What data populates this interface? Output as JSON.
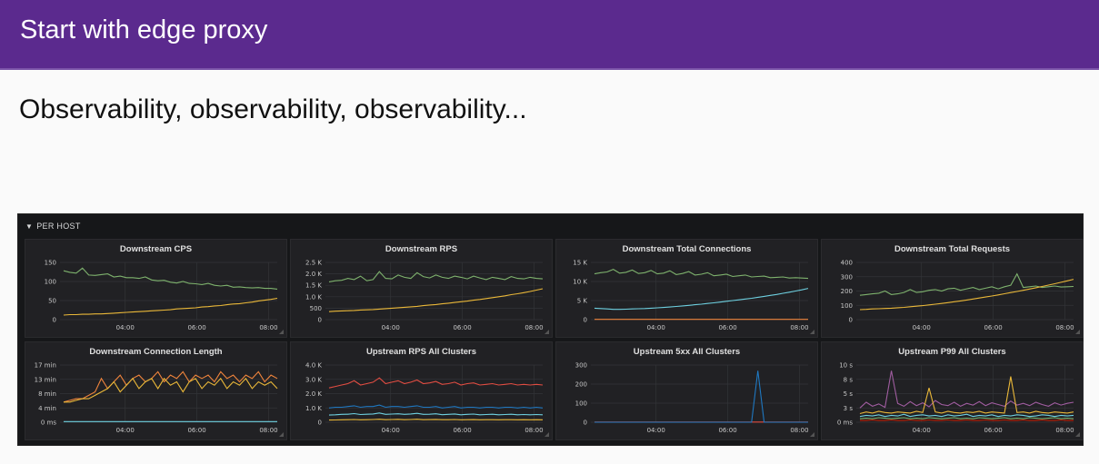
{
  "slide": {
    "title": "Start with edge proxy",
    "subtitle": "Observability, observability, observability..."
  },
  "dashboard": {
    "row_title": "PER HOST",
    "x_ticks": [
      "04:00",
      "06:00",
      "08:00"
    ],
    "panels": [
      {
        "title": "Downstream CPS",
        "y_ticks": [
          "150",
          "100",
          "50",
          "0"
        ],
        "series": [
          {
            "color": "#7eb26d",
            "values": [
              128,
              124,
              122,
              135,
              117,
              116,
              118,
              120,
              112,
              114,
              110,
              110,
              108,
              112,
              104,
              102,
              103,
              98,
              96,
              100,
              95,
              94,
              92,
              95,
              90,
              88,
              90,
              85,
              86,
              84,
              83,
              84,
              82,
              82,
              80
            ]
          },
          {
            "color": "#eab839",
            "values": [
              12,
              13,
              13,
              14,
              14,
              15,
              15,
              16,
              17,
              18,
              19,
              20,
              21,
              22,
              23,
              24,
              25,
              26,
              28,
              29,
              30,
              31,
              33,
              34,
              36,
              37,
              39,
              41,
              42,
              44,
              46,
              49,
              51,
              53,
              56
            ]
          }
        ],
        "ymax": 150
      },
      {
        "title": "Downstream RPS",
        "y_ticks": [
          "2.5 K",
          "2.0 K",
          "1.5 K",
          "1.0 K",
          "500",
          "0"
        ],
        "series": [
          {
            "color": "#7eb26d",
            "values": [
              1650,
              1700,
              1720,
              1800,
              1750,
              1900,
              1700,
              1750,
              2100,
              1800,
              1780,
              1950,
              1850,
              1800,
              2050,
              1880,
              1820,
              1950,
              1850,
              1800,
              1900,
              1850,
              1780,
              1900,
              1820,
              1750,
              1850,
              1800,
              1750,
              1880,
              1800,
              1780,
              1850,
              1800,
              1780
            ]
          },
          {
            "color": "#eab839",
            "values": [
              350,
              370,
              380,
              390,
              400,
              420,
              430,
              440,
              460,
              480,
              500,
              520,
              540,
              560,
              580,
              610,
              640,
              660,
              690,
              720,
              750,
              780,
              810,
              850,
              880,
              920,
              960,
              1000,
              1040,
              1090,
              1130,
              1180,
              1230,
              1290,
              1350
            ]
          }
        ],
        "ymax": 2500
      },
      {
        "title": "Downstream Total Connections",
        "y_ticks": [
          "15 K",
          "10 K",
          "5 K",
          "0"
        ],
        "series": [
          {
            "color": "#7eb26d",
            "values": [
              12000,
              12300,
              12500,
              13200,
              12200,
              12400,
              13000,
              12100,
              12300,
              12900,
              12000,
              12200,
              12800,
              11800,
              12100,
              12600,
              11700,
              11900,
              12300,
              11500,
              11700,
              11900,
              11300,
              11500,
              11700,
              11200,
              11300,
              11400,
              11000,
              11100,
              11200,
              10900,
              11000,
              10900,
              10800
            ]
          },
          {
            "color": "#6ed0e0",
            "values": [
              3000,
              2900,
              2800,
              2700,
              2700,
              2750,
              2800,
              2850,
              2900,
              3000,
              3100,
              3200,
              3300,
              3450,
              3600,
              3750,
              3900,
              4050,
              4250,
              4400,
              4600,
              4800,
              5000,
              5200,
              5400,
              5600,
              5850,
              6100,
              6350,
              6600,
              6900,
              7200,
              7500,
              7800,
              8200
            ]
          },
          {
            "color": "#ef843c",
            "values": [
              80,
              80,
              80,
              80,
              80,
              80,
              80,
              80,
              80,
              80,
              80,
              80,
              80,
              80,
              80,
              80,
              80,
              80,
              80,
              80,
              80,
              80,
              80,
              80,
              80,
              80,
              80,
              80,
              80,
              80,
              80,
              80,
              80,
              80,
              80
            ]
          }
        ],
        "ymax": 15000
      },
      {
        "title": "Downstream Total Requests",
        "y_ticks": [
          "400",
          "300",
          "200",
          "100",
          "0"
        ],
        "series": [
          {
            "color": "#7eb26d",
            "values": [
              170,
              175,
              180,
              185,
              200,
              175,
              180,
              190,
              210,
              190,
              195,
              205,
              210,
              200,
              215,
              220,
              205,
              215,
              225,
              210,
              220,
              230,
              215,
              230,
              240,
              320,
              225,
              230,
              235,
              225,
              230,
              235,
              228,
              230,
              232
            ]
          },
          {
            "color": "#eab839",
            "values": [
              70,
              72,
              75,
              76,
              78,
              80,
              83,
              86,
              90,
              94,
              98,
              103,
              108,
              113,
              119,
              125,
              131,
              137,
              144,
              151,
              158,
              165,
              173,
              181,
              189,
              197,
              205,
              214,
              223,
              232,
              241,
              251,
              261,
              271,
              282
            ]
          }
        ],
        "ymax": 400
      },
      {
        "title": "Downstream Connection Length",
        "y_ticks": [
          "17 min",
          "13 min",
          "8 min",
          "4 min",
          "0 ms"
        ],
        "series": [
          {
            "color": "#ef843c",
            "values": [
              6,
              6.5,
              7,
              7,
              8,
              9,
              13,
              10,
              12,
              14,
              11,
              13,
              14,
              12,
              13,
              15,
              12,
              14,
              13,
              15,
              12,
              14,
              13,
              14,
              12,
              15,
              13,
              14,
              12,
              14,
              13,
              15,
              12,
              14,
              13
            ]
          },
          {
            "color": "#eab839",
            "values": [
              6,
              6,
              6.5,
              7,
              7,
              8,
              9,
              10,
              12,
              9,
              11,
              13,
              10,
              12,
              13,
              10,
              13,
              11,
              12,
              9,
              12,
              13,
              10,
              12,
              11,
              13,
              10,
              12,
              11,
              13,
              10,
              12,
              11,
              12,
              10
            ]
          },
          {
            "color": "#6ed0e0",
            "values": [
              0.2,
              0.2,
              0.2,
              0.2,
              0.2,
              0.2,
              0.2,
              0.2,
              0.2,
              0.2,
              0.2,
              0.2,
              0.2,
              0.2,
              0.2,
              0.2,
              0.2,
              0.2,
              0.2,
              0.2,
              0.2,
              0.2,
              0.2,
              0.2,
              0.2,
              0.2,
              0.2,
              0.2,
              0.2,
              0.2,
              0.2,
              0.2,
              0.2,
              0.2,
              0.2
            ]
          }
        ],
        "ymax": 17
      },
      {
        "title": "Upstream RPS All Clusters",
        "y_ticks": [
          "4.0 K",
          "3.0 K",
          "2.0 K",
          "1.0 K",
          "0"
        ],
        "series": [
          {
            "color": "#e24d42",
            "values": [
              2400,
              2500,
              2600,
              2700,
              2900,
              2600,
              2700,
              2800,
              3100,
              2700,
              2800,
              2900,
              2700,
              2800,
              2950,
              2700,
              2750,
              2850,
              2650,
              2700,
              2800,
              2600,
              2700,
              2750,
              2600,
              2650,
              2700,
              2600,
              2650,
              2700,
              2600,
              2650,
              2600,
              2650,
              2600
            ]
          },
          {
            "color": "#1f78c1",
            "values": [
              1000,
              1050,
              1050,
              1100,
              1150,
              1050,
              1100,
              1100,
              1200,
              1050,
              1100,
              1100,
              1050,
              1100,
              1150,
              1050,
              1050,
              1100,
              1000,
              1050,
              1100,
              1000,
              1050,
              1050,
              1000,
              1050,
              1050,
              1000,
              1050,
              1050,
              1000,
              1050,
              1000,
              1050,
              1000
            ]
          },
          {
            "color": "#6ed0e0",
            "values": [
              500,
              520,
              550,
              560,
              600,
              540,
              560,
              580,
              650,
              550,
              570,
              590,
              550,
              580,
              620,
              550,
              560,
              590,
              530,
              550,
              580,
              520,
              550,
              570,
              520,
              540,
              560,
              520,
              540,
              560,
              520,
              540,
              520,
              540,
              520
            ]
          },
          {
            "color": "#eab839",
            "values": [
              150,
              160,
              170,
              180,
              190,
              170,
              180,
              190,
              210,
              180,
              190,
              200,
              180,
              190,
              210,
              180,
              185,
              195,
              175,
              180,
              190,
              170,
              180,
              185,
              170,
              175,
              180,
              170,
              175,
              180,
              170,
              175,
              170,
              175,
              170
            ]
          }
        ],
        "ymax": 4000
      },
      {
        "title": "Upstream 5xx All Clusters",
        "y_ticks": [
          "300",
          "200",
          "100",
          "0"
        ],
        "series": [
          {
            "color": "#e24d42",
            "values": [
              1,
              1,
              1,
              1,
              1,
              1,
              1,
              1,
              1,
              1,
              1,
              1,
              1,
              1,
              1,
              1,
              1,
              1,
              1,
              1,
              1,
              1,
              1,
              1,
              1,
              1,
              1,
              1,
              1,
              1,
              1,
              1,
              1,
              1,
              1
            ]
          },
          {
            "color": "#1f78c1",
            "values": [
              0,
              0,
              0,
              0,
              0,
              0,
              0,
              0,
              0,
              0,
              0,
              0,
              0,
              0,
              0,
              0,
              0,
              0,
              0,
              0,
              0,
              0,
              0,
              0,
              0,
              0,
              270,
              0,
              0,
              0,
              0,
              0,
              0,
              0,
              0
            ]
          }
        ],
        "ymax": 300
      },
      {
        "title": "Upstream P99 All Clusters",
        "y_ticks": [
          "10 s",
          "8 s",
          "5 s",
          "3 s",
          "0 ms"
        ],
        "series": [
          {
            "color": "#a05da0",
            "values": [
              2.5,
              3.5,
              2.8,
              3.2,
              2.6,
              9,
              3.3,
              2.8,
              3.6,
              2.9,
              3.4,
              2.7,
              3.8,
              3.1,
              2.9,
              3.5,
              2.8,
              3.3,
              3,
              3.6,
              2.9,
              3.4,
              3.1,
              2.8,
              3.7,
              3,
              3.3,
              2.9,
              3.5,
              3.1,
              2.8,
              3.4,
              3,
              3.3,
              3.5
            ]
          },
          {
            "color": "#eab839",
            "values": [
              1.5,
              1.8,
              1.6,
              1.9,
              1.7,
              1.6,
              1.8,
              1.7,
              1.6,
              1.9,
              1.7,
              6,
              1.8,
              1.6,
              1.9,
              1.7,
              1.6,
              1.8,
              1.7,
              1.9,
              1.6,
              1.8,
              1.7,
              1.6,
              8,
              1.7,
              1.8,
              1.6,
              1.9,
              1.7,
              1.6,
              1.8,
              1.7,
              1.6,
              1.8
            ]
          },
          {
            "color": "#6ed0e0",
            "values": [
              1,
              1.2,
              1.1,
              1.3,
              1,
              1.2,
              1.1,
              1.4,
              1,
              1.2,
              1.3,
              1.1,
              1.2,
              1,
              1.3,
              1.1,
              1.2,
              1.4,
              1,
              1.2,
              1.1,
              1.3,
              1,
              1.2,
              1.1,
              1.3,
              1.2,
              1,
              1.1,
              1.3,
              1.2,
              1,
              1.2,
              1.1,
              1.2
            ]
          },
          {
            "color": "#7eb26d",
            "values": [
              0.6,
              0.7,
              0.6,
              0.8,
              0.7,
              0.6,
              0.7,
              0.8,
              0.6,
              0.7,
              0.6,
              0.8,
              0.7,
              0.6,
              0.7,
              0.8,
              0.6,
              0.7,
              0.6,
              0.8,
              0.7,
              0.6,
              0.7,
              0.8,
              0.6,
              0.7,
              0.6,
              0.8,
              0.7,
              0.6,
              0.7,
              0.8,
              0.6,
              0.7,
              0.6
            ]
          },
          {
            "color": "#bf1b00",
            "values": [
              0.3,
              0.3,
              0.4,
              0.3,
              0.3,
              0.4,
              0.3,
              0.3,
              0.4,
              0.3,
              0.3,
              0.4,
              0.3,
              0.3,
              0.4,
              0.3,
              0.3,
              0.4,
              0.3,
              0.3,
              0.4,
              0.3,
              0.3,
              0.4,
              0.3,
              0.3,
              0.4,
              0.3,
              0.3,
              0.4,
              0.3,
              0.3,
              0.4,
              0.3,
              0.3
            ]
          }
        ],
        "ymax": 10
      }
    ]
  }
}
